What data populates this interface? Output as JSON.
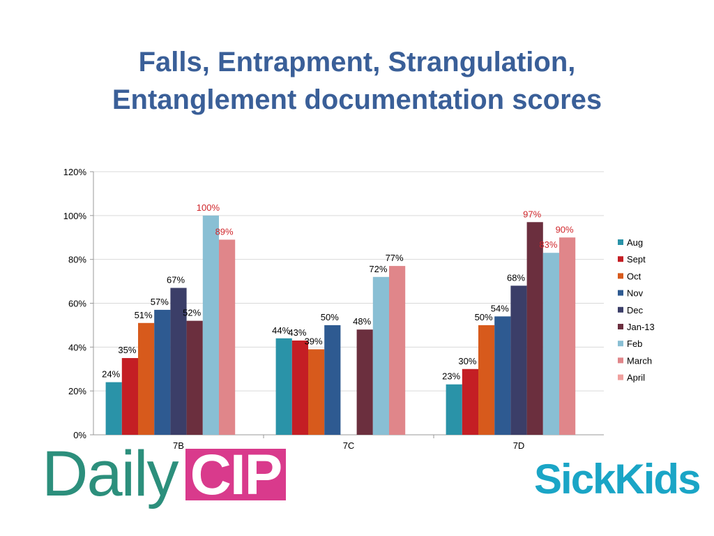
{
  "title_line1": "Falls, Entrapment, Strangulation,",
  "title_line2": "Entanglement documentation scores",
  "chart_data": {
    "type": "bar",
    "categories": [
      "7B",
      "7C",
      "7D"
    ],
    "ylim": [
      0,
      120
    ],
    "y_ticks": [
      "0%",
      "20%",
      "40%",
      "60%",
      "80%",
      "100%",
      "120%"
    ],
    "grid": true,
    "legend_position": "right",
    "series": [
      {
        "name": "Aug",
        "color": "#2a93a8",
        "values": [
          24,
          44,
          23
        ]
      },
      {
        "name": "Sept",
        "color": "#c41e24",
        "values": [
          35,
          43,
          30
        ]
      },
      {
        "name": "Oct",
        "color": "#d75a1c",
        "values": [
          51,
          39,
          50
        ]
      },
      {
        "name": "Nov",
        "color": "#2e5a91",
        "values": [
          57,
          50,
          54
        ]
      },
      {
        "name": "Dec",
        "color": "#3b3e68",
        "values": [
          67,
          null,
          68
        ]
      },
      {
        "name": "Jan-13",
        "color": "#6b2f3e",
        "values": [
          52,
          48,
          97
        ]
      },
      {
        "name": "Feb",
        "color": "#89bfd4",
        "values": [
          100,
          72,
          83
        ]
      },
      {
        "name": "March",
        "color": "#e0868a",
        "values": [
          89,
          77,
          90
        ]
      },
      {
        "name": "April",
        "color": "#f0a09e",
        "values": [
          null,
          null,
          null
        ]
      }
    ],
    "data_labels": [
      [
        "24%",
        "44%",
        "23%"
      ],
      [
        "35%",
        "43%",
        "30%"
      ],
      [
        "51%",
        "39%",
        "50%"
      ],
      [
        "57%",
        "50%",
        "54%"
      ],
      [
        "67%",
        null,
        "68%"
      ],
      [
        "52%",
        "48%",
        "97%"
      ],
      [
        "100%",
        "72%",
        "83%"
      ],
      [
        "89%",
        "77%",
        "90%"
      ],
      [
        null,
        null,
        null
      ]
    ],
    "red_labels": [
      [
        false,
        false,
        false
      ],
      [
        false,
        false,
        false
      ],
      [
        false,
        false,
        false
      ],
      [
        false,
        false,
        false
      ],
      [
        false,
        false,
        false
      ],
      [
        false,
        false,
        true
      ],
      [
        true,
        false,
        true
      ],
      [
        true,
        false,
        true
      ],
      [
        false,
        false,
        false
      ]
    ]
  },
  "logos": {
    "daily_word": "Daily",
    "cip_word": "CIP",
    "sickkids_word": "SickKids"
  }
}
